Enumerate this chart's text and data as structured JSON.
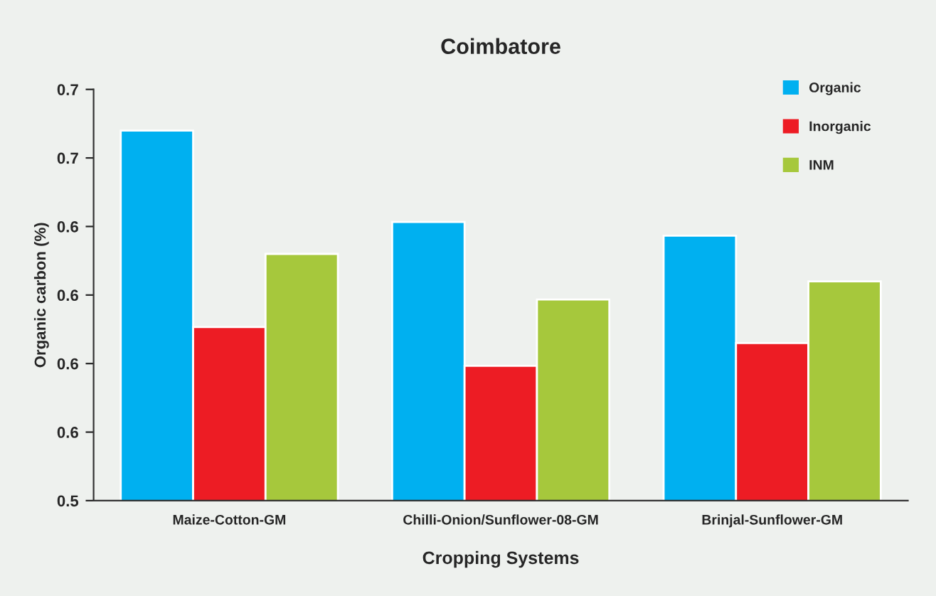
{
  "chart_data": {
    "type": "bar",
    "title": "Coimbatore",
    "xlabel": "Cropping Systems",
    "ylabel": "Organic carbon (%)",
    "categories": [
      "Maize-Cotton-GM",
      "Chilli-Onion/Sunflower-08-GM",
      "Brinjal-Sunflower-GM"
    ],
    "series": [
      {
        "name": "Organic",
        "color": "#00b0f0",
        "values": [
          0.682,
          0.642,
          0.636
        ]
      },
      {
        "name": "Inorganic",
        "color": "#ed1c24",
        "values": [
          0.596,
          0.579,
          0.589
        ]
      },
      {
        "name": "INM",
        "color": "#a6c83c",
        "values": [
          0.628,
          0.608,
          0.616
        ]
      }
    ],
    "ylim": [
      0.52,
      0.7
    ],
    "yticks": [
      {
        "value": 0.52,
        "label": "0.5"
      },
      {
        "value": 0.55,
        "label": "0.6"
      },
      {
        "value": 0.58,
        "label": "0.6"
      },
      {
        "value": 0.61,
        "label": "0.6"
      },
      {
        "value": 0.64,
        "label": "0.6"
      },
      {
        "value": 0.67,
        "label": "0.7"
      },
      {
        "value": 0.7,
        "label": "0.7"
      }
    ],
    "legend": "top right",
    "grid": false
  }
}
